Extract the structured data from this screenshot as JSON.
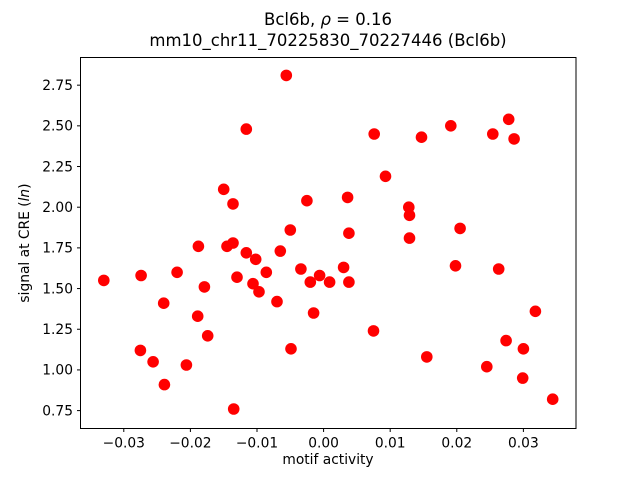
{
  "figure": {
    "title_line1": {
      "prefix": "Bcl6b, ",
      "rho": "ρ",
      "suffix": " = 0.16"
    },
    "title_line2": "mm10_chr11_70225830_70227446 (Bcl6b)",
    "ylabel": {
      "prefix": "signal at CRE (",
      "italic": "ln",
      "suffix": ")"
    },
    "xlabel": "motif activity",
    "background_color": "#ffffff",
    "axis_color": "#000000"
  },
  "chart_data": {
    "type": "scatter",
    "title": "Bcl6b, ρ = 0.16",
    "subtitle": "mm10_chr11_70225830_70227446 (Bcl6b)",
    "xlabel": "motif activity",
    "ylabel": "signal at CRE (ln)",
    "xlim": [
      -0.0365,
      0.0379
    ],
    "ylim": [
      0.64,
      2.92
    ],
    "xticks": [
      -0.03,
      -0.02,
      -0.01,
      0.0,
      0.01,
      0.02,
      0.03
    ],
    "yticks": [
      0.75,
      1.0,
      1.25,
      1.5,
      1.75,
      2.0,
      2.25,
      2.5,
      2.75
    ],
    "grid": false,
    "legend": null,
    "marker_color": "#ff0000",
    "marker_radius_px": 5.8,
    "points": [
      [
        -0.0056,
        2.81
      ],
      [
        -0.0116,
        2.48
      ],
      [
        0.0076,
        2.45
      ],
      [
        0.0147,
        2.43
      ],
      [
        0.0191,
        2.5
      ],
      [
        0.0254,
        2.45
      ],
      [
        0.0278,
        2.54
      ],
      [
        0.0286,
        2.42
      ],
      [
        0.0093,
        2.19
      ],
      [
        -0.015,
        2.11
      ],
      [
        -0.0136,
        2.02
      ],
      [
        0.0036,
        2.06
      ],
      [
        -0.0025,
        2.04
      ],
      [
        0.0128,
        2.0
      ],
      [
        0.0129,
        1.95
      ],
      [
        0.0129,
        1.81
      ],
      [
        -0.005,
        1.86
      ],
      [
        0.0038,
        1.84
      ],
      [
        0.0205,
        1.87
      ],
      [
        -0.0188,
        1.76
      ],
      [
        -0.0145,
        1.76
      ],
      [
        -0.0136,
        1.78
      ],
      [
        -0.0116,
        1.72
      ],
      [
        -0.0102,
        1.68
      ],
      [
        -0.0065,
        1.73
      ],
      [
        -0.0086,
        1.6
      ],
      [
        -0.0034,
        1.62
      ],
      [
        -0.013,
        1.57
      ],
      [
        -0.0106,
        1.53
      ],
      [
        -0.0097,
        1.48
      ],
      [
        -0.007,
        1.42
      ],
      [
        -0.033,
        1.55
      ],
      [
        -0.0274,
        1.58
      ],
      [
        -0.022,
        1.6
      ],
      [
        -0.0179,
        1.51
      ],
      [
        -0.024,
        1.41
      ],
      [
        -0.0189,
        1.33
      ],
      [
        -0.002,
        1.54
      ],
      [
        -0.0006,
        1.58
      ],
      [
        0.0009,
        1.54
      ],
      [
        0.003,
        1.63
      ],
      [
        0.0038,
        1.54
      ],
      [
        -0.0015,
        1.35
      ],
      [
        0.0075,
        1.24
      ],
      [
        0.0198,
        1.64
      ],
      [
        0.0263,
        1.62
      ],
      [
        -0.0174,
        1.21
      ],
      [
        -0.0275,
        1.12
      ],
      [
        -0.0256,
        1.05
      ],
      [
        -0.0206,
        1.03
      ],
      [
        -0.0239,
        0.91
      ],
      [
        -0.0135,
        0.76
      ],
      [
        -0.0049,
        1.13
      ],
      [
        0.0318,
        1.36
      ],
      [
        0.0274,
        1.18
      ],
      [
        0.03,
        1.13
      ],
      [
        0.0155,
        1.08
      ],
      [
        0.0245,
        1.02
      ],
      [
        0.0299,
        0.95
      ],
      [
        0.0344,
        0.82
      ]
    ]
  }
}
